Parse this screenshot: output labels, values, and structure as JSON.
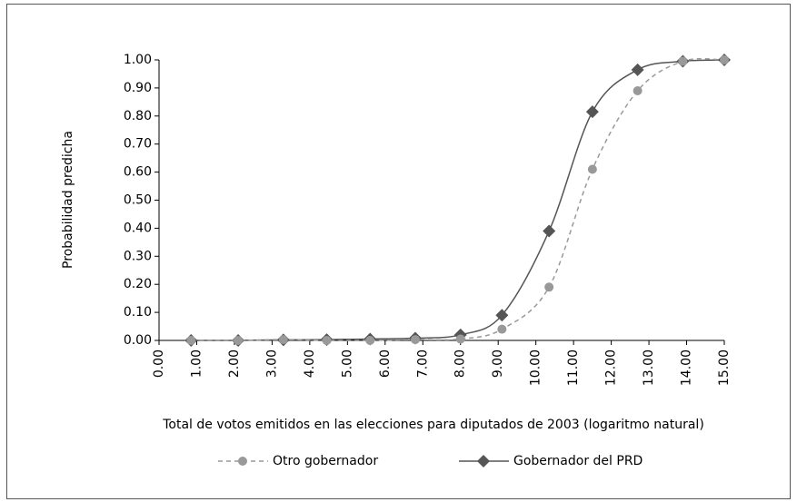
{
  "chart_data": {
    "type": "line",
    "x_label": "Total de votos emitidos en las elecciones para diputados de 2003 (logaritmo natural)",
    "y_label": "Probabilidad predicha",
    "x": [
      0.85,
      2.1,
      3.3,
      4.45,
      5.6,
      6.8,
      8.0,
      9.1,
      10.35,
      11.5,
      12.7,
      13.9,
      15.0
    ],
    "series": [
      {
        "name": "Gobernador del PRD",
        "color": "#555555",
        "marker": "diamond",
        "dashed": false,
        "values": [
          0,
          0,
          0.002,
          0.003,
          0.005,
          0.008,
          0.02,
          0.09,
          0.39,
          0.815,
          0.965,
          0.995,
          1.0
        ]
      },
      {
        "name": "Otro gobernador",
        "color": "#999999",
        "marker": "circle",
        "dashed": true,
        "values": [
          0,
          0,
          0.003,
          0,
          0,
          0.003,
          0.005,
          0.04,
          0.19,
          0.61,
          0.89,
          0.995,
          1.0
        ]
      }
    ],
    "xlim": [
      0,
      15
    ],
    "xticks": [
      {
        "value": 0,
        "label": "0.00"
      },
      {
        "value": 1,
        "label": "1.00"
      },
      {
        "value": 2,
        "label": "2.00"
      },
      {
        "value": 3,
        "label": "3.00"
      },
      {
        "value": 4,
        "label": "4.00"
      },
      {
        "value": 5,
        "label": "5.00"
      },
      {
        "value": 6,
        "label": "6.00"
      },
      {
        "value": 7,
        "label": "7.00"
      },
      {
        "value": 8,
        "label": "8.00"
      },
      {
        "value": 9,
        "label": "9.00"
      },
      {
        "value": 10,
        "label": "10.00"
      },
      {
        "value": 11,
        "label": "11.00"
      },
      {
        "value": 12,
        "label": "12.00"
      },
      {
        "value": 13,
        "label": "13.00"
      },
      {
        "value": 14,
        "label": "14.00"
      },
      {
        "value": 15,
        "label": "15.00"
      }
    ],
    "ylim": [
      0,
      1
    ],
    "yticks": [
      {
        "value": 0,
        "label": "0.00"
      },
      {
        "value": 0.1,
        "label": "0.10"
      },
      {
        "value": 0.2,
        "label": "0.20"
      },
      {
        "value": 0.3,
        "label": "0.30"
      },
      {
        "value": 0.4,
        "label": "0.40"
      },
      {
        "value": 0.5,
        "label": "0.50"
      },
      {
        "value": 0.6,
        "label": "0.60"
      },
      {
        "value": 0.7,
        "label": "0.70"
      },
      {
        "value": 0.8,
        "label": "0.80"
      },
      {
        "value": 0.9,
        "label": "0.90"
      },
      {
        "value": 1,
        "label": "1.00"
      }
    ],
    "grid": false
  }
}
